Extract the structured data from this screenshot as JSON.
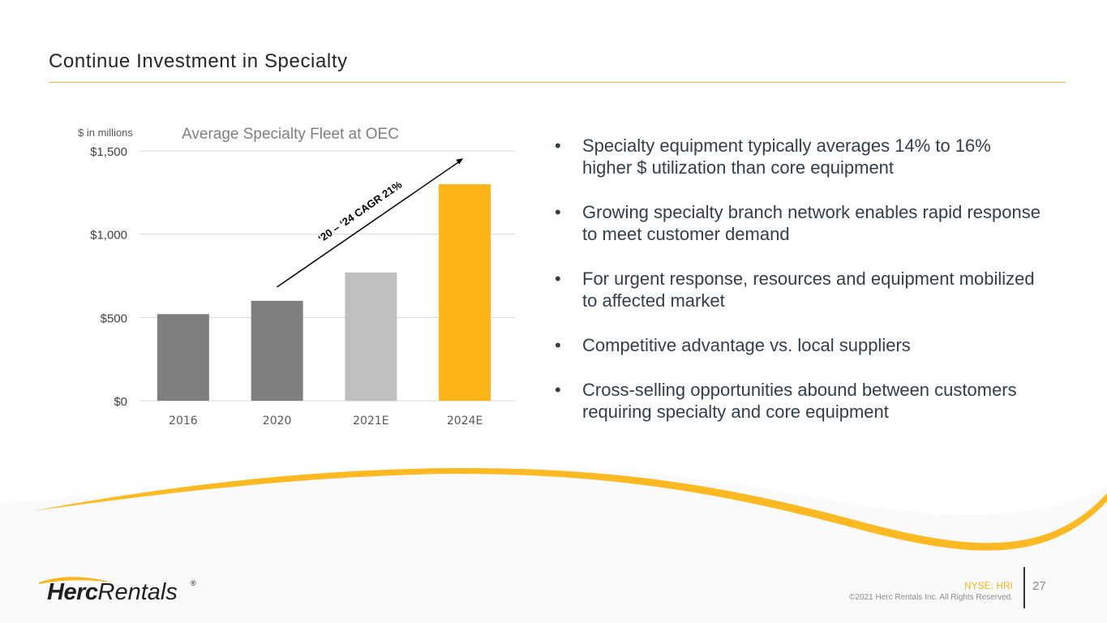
{
  "slide": {
    "title": "Continue Investment in Specialty",
    "units_label": "$ in millions"
  },
  "chart_data": {
    "type": "bar",
    "title": "Average Specialty Fleet at OEC",
    "categories": [
      "2016",
      "2020",
      "2021E",
      "2024E"
    ],
    "values": [
      520,
      600,
      770,
      1300
    ],
    "bar_colors": [
      "#7f7f7f",
      "#7f7f7f",
      "#bfbfbf",
      "#fdb515"
    ],
    "ylim": [
      0,
      1500
    ],
    "yticks": [
      0,
      500,
      1000,
      1500
    ],
    "ytick_labels": [
      "$0",
      "$500",
      "$1,000",
      "$1,500"
    ],
    "xlabel": "",
    "ylabel": "$ in millions",
    "grid": true,
    "annotation": {
      "text": "‘20 – ‘24 CAGR  21%",
      "from_category": "2020",
      "to_category": "2024E"
    }
  },
  "bullets": [
    "Specialty equipment typically averages 14% to 16% higher $ utilization than core equipment",
    "Growing specialty branch network enables rapid response to meet customer demand",
    "For urgent response, resources and equipment mobilized to affected market",
    "Competitive advantage vs. local suppliers",
    "Cross-selling opportunities abound between customers requiring specialty and core equipment"
  ],
  "footer": {
    "logo_bold": "Herc",
    "logo_light": "Rentals",
    "logo_reg": "®",
    "ticker": "NYSE: HRI",
    "copyright": "©2021 Herc Rentals Inc.  All Rights Reserved.",
    "page_number": "27"
  },
  "colors": {
    "accent": "#fdb515",
    "rule": "#f2b33d",
    "text": "#333f48"
  }
}
